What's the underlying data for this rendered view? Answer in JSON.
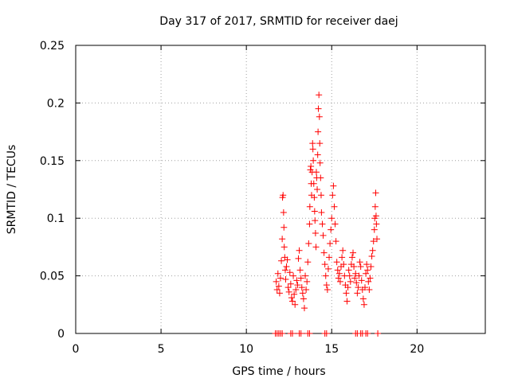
{
  "chart_data": {
    "type": "scatter",
    "title": "Day 317 of 2017, SRMTID for receiver daej",
    "xlabel": "GPS time / hours",
    "ylabel": "SRMTID / TECUs",
    "xlim": [
      0,
      24
    ],
    "ylim": [
      0,
      0.25
    ],
    "xticks": [
      "0",
      "5",
      "10",
      "15",
      "20"
    ],
    "yticks": [
      "0",
      "0.05",
      "0.1",
      "0.15",
      "0.2",
      "0.25"
    ],
    "grid": true,
    "marker": "plus",
    "color": "#ff0000",
    "points": [
      [
        11.75,
        0.045
      ],
      [
        11.8,
        0.038
      ],
      [
        11.85,
        0.052
      ],
      [
        11.9,
        0.041
      ],
      [
        11.95,
        0.035
      ],
      [
        12.0,
        0.048
      ],
      [
        12.05,
        0.063
      ],
      [
        12.1,
        0.082
      ],
      [
        12.12,
        0.118
      ],
      [
        12.15,
        0.12
      ],
      [
        12.18,
        0.105
      ],
      [
        12.2,
        0.092
      ],
      [
        12.22,
        0.075
      ],
      [
        12.25,
        0.066
      ],
      [
        12.28,
        0.055
      ],
      [
        12.3,
        0.047
      ],
      [
        12.35,
        0.058
      ],
      [
        12.4,
        0.064
      ],
      [
        12.45,
        0.04
      ],
      [
        12.5,
        0.036
      ],
      [
        12.55,
        0.053
      ],
      [
        12.6,
        0.043
      ],
      [
        12.65,
        0.031
      ],
      [
        12.7,
        0.028
      ],
      [
        12.75,
        0.05
      ],
      [
        12.8,
        0.034
      ],
      [
        12.85,
        0.025
      ],
      [
        12.9,
        0.038
      ],
      [
        12.95,
        0.046
      ],
      [
        13.0,
        0.042
      ],
      [
        13.05,
        0.065
      ],
      [
        13.1,
        0.072
      ],
      [
        13.15,
        0.055
      ],
      [
        13.2,
        0.048
      ],
      [
        13.25,
        0.04
      ],
      [
        13.3,
        0.035
      ],
      [
        13.35,
        0.03
      ],
      [
        13.4,
        0.022
      ],
      [
        13.45,
        0.05
      ],
      [
        13.5,
        0.038
      ],
      [
        13.55,
        0.045
      ],
      [
        13.6,
        0.062
      ],
      [
        13.65,
        0.078
      ],
      [
        13.7,
        0.095
      ],
      [
        13.72,
        0.11
      ],
      [
        13.75,
        0.142
      ],
      [
        13.78,
        0.145
      ],
      [
        13.8,
        0.13
      ],
      [
        13.82,
        0.12
      ],
      [
        13.85,
        0.14
      ],
      [
        13.88,
        0.165
      ],
      [
        13.9,
        0.16
      ],
      [
        13.92,
        0.15
      ],
      [
        13.95,
        0.13
      ],
      [
        13.98,
        0.118
      ],
      [
        14.0,
        0.106
      ],
      [
        14.02,
        0.098
      ],
      [
        14.05,
        0.087
      ],
      [
        14.08,
        0.075
      ],
      [
        14.1,
        0.14
      ],
      [
        14.12,
        0.135
      ],
      [
        14.15,
        0.125
      ],
      [
        14.18,
        0.155
      ],
      [
        14.2,
        0.175
      ],
      [
        14.22,
        0.195
      ],
      [
        14.25,
        0.207
      ],
      [
        14.28,
        0.188
      ],
      [
        14.3,
        0.165
      ],
      [
        14.32,
        0.148
      ],
      [
        14.35,
        0.135
      ],
      [
        14.38,
        0.12
      ],
      [
        14.4,
        0.105
      ],
      [
        14.45,
        0.095
      ],
      [
        14.5,
        0.085
      ],
      [
        14.55,
        0.07
      ],
      [
        14.6,
        0.06
      ],
      [
        14.65,
        0.05
      ],
      [
        14.7,
        0.042
      ],
      [
        14.75,
        0.038
      ],
      [
        14.8,
        0.056
      ],
      [
        14.85,
        0.066
      ],
      [
        14.9,
        0.078
      ],
      [
        14.95,
        0.09
      ],
      [
        15.0,
        0.1
      ],
      [
        15.05,
        0.12
      ],
      [
        15.1,
        0.128
      ],
      [
        15.15,
        0.11
      ],
      [
        15.2,
        0.095
      ],
      [
        15.25,
        0.08
      ],
      [
        15.3,
        0.062
      ],
      [
        15.35,
        0.055
      ],
      [
        15.4,
        0.048
      ],
      [
        15.45,
        0.052
      ],
      [
        15.5,
        0.045
      ],
      [
        15.55,
        0.058
      ],
      [
        15.6,
        0.066
      ],
      [
        15.65,
        0.072
      ],
      [
        15.7,
        0.06
      ],
      [
        15.75,
        0.05
      ],
      [
        15.8,
        0.042
      ],
      [
        15.85,
        0.035
      ],
      [
        15.9,
        0.028
      ],
      [
        15.95,
        0.04
      ],
      [
        16.0,
        0.055
      ],
      [
        16.05,
        0.05
      ],
      [
        16.1,
        0.045
      ],
      [
        16.15,
        0.06
      ],
      [
        16.2,
        0.066
      ],
      [
        16.25,
        0.07
      ],
      [
        16.3,
        0.058
      ],
      [
        16.35,
        0.048
      ],
      [
        16.4,
        0.052
      ],
      [
        16.45,
        0.044
      ],
      [
        16.5,
        0.035
      ],
      [
        16.55,
        0.04
      ],
      [
        16.6,
        0.05
      ],
      [
        16.65,
        0.062
      ],
      [
        16.7,
        0.058
      ],
      [
        16.75,
        0.046
      ],
      [
        16.8,
        0.038
      ],
      [
        16.85,
        0.03
      ],
      [
        16.9,
        0.025
      ],
      [
        16.95,
        0.04
      ],
      [
        17.0,
        0.052
      ],
      [
        17.05,
        0.06
      ],
      [
        17.1,
        0.055
      ],
      [
        17.15,
        0.045
      ],
      [
        17.2,
        0.038
      ],
      [
        17.25,
        0.048
      ],
      [
        17.3,
        0.058
      ],
      [
        17.35,
        0.067
      ],
      [
        17.4,
        0.072
      ],
      [
        17.45,
        0.08
      ],
      [
        17.5,
        0.09
      ],
      [
        17.52,
        0.1
      ],
      [
        17.55,
        0.11
      ],
      [
        17.58,
        0.122
      ],
      [
        17.6,
        0.102
      ],
      [
        17.62,
        0.095
      ],
      [
        17.65,
        0.082
      ]
    ],
    "baseline_markers": [
      11.7,
      11.8,
      11.9,
      12.0,
      12.1,
      12.6,
      12.7,
      13.1,
      13.2,
      13.6,
      13.7,
      14.6,
      14.7,
      16.4,
      16.5,
      16.7,
      16.8,
      17.0,
      17.1,
      17.7
    ]
  }
}
